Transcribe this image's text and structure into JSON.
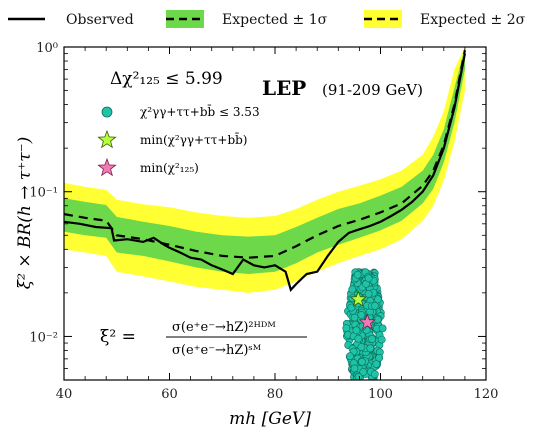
{
  "legend": [
    {
      "label": "Observed",
      "style": "solid",
      "color": "#000000"
    },
    {
      "label": "Expected  ± 1σ",
      "style": "dashed",
      "color": "#000000",
      "band": "#6cd84a"
    },
    {
      "label": "Expected  ± 2σ",
      "style": "dashed",
      "color": "#000000",
      "band": "#ffff33"
    }
  ],
  "annotations": {
    "delta_chi": "Δχ²₁₂₅ ≤ 5.99",
    "lep_bold": "LEP",
    "lep_range": "(91-209 GeV)",
    "scatter_label": "χ²γγ+ττ+bb̄ ≤ 3.53",
    "star_green_label": "min(χ²γγ+ττ+bb̄)",
    "star_pink_label": "min(χ²₁₂₅)",
    "formula_lhs": "ξ² =",
    "formula_num": "σ(e⁺e⁻→hZ)²ᴴᴰᴹ",
    "formula_den": "σ(e⁺e⁻→hZ)ˢᴹ"
  },
  "colors": {
    "band_1sigma": "#6cd84a",
    "band_2sigma": "#ffff33",
    "scatter": "#1fc4a8",
    "star_green": "#b6ff3c",
    "star_pink": "#f07ab4"
  },
  "chart_data": {
    "type": "line",
    "xlabel": "mh [GeV]",
    "ylabel": "ξ² × BR(h → τ⁺τ⁻)",
    "xlim": [
      40,
      120
    ],
    "ylim": [
      0.005,
      1.0
    ],
    "yscale": "log",
    "x_ticks": [
      "40",
      "60",
      "80",
      "100",
      "120"
    ],
    "y_ticks": [
      "10⁻²",
      "10⁻¹",
      "10⁰"
    ],
    "series": [
      {
        "name": "Observed",
        "x": [
          40,
          43,
          46,
          49,
          49.5,
          52,
          55,
          57,
          59,
          60,
          62,
          64,
          66,
          68,
          70,
          72,
          74,
          76,
          78,
          80,
          82,
          83,
          84,
          86,
          88,
          90,
          92,
          94,
          96,
          98,
          100,
          102,
          104,
          106,
          108,
          110,
          112,
          114,
          116
        ],
        "y": [
          0.062,
          0.06,
          0.057,
          0.056,
          0.046,
          0.047,
          0.045,
          0.048,
          0.043,
          0.041,
          0.038,
          0.035,
          0.034,
          0.031,
          0.029,
          0.027,
          0.034,
          0.031,
          0.03,
          0.031,
          0.028,
          0.021,
          0.023,
          0.027,
          0.028,
          0.036,
          0.045,
          0.052,
          0.055,
          0.058,
          0.062,
          0.068,
          0.075,
          0.085,
          0.1,
          0.13,
          0.2,
          0.38,
          0.9
        ]
      },
      {
        "name": "Expected",
        "x": [
          40,
          44,
          48,
          50,
          55,
          60,
          65,
          70,
          75,
          80,
          84,
          88,
          92,
          96,
          100,
          104,
          108,
          110,
          112,
          114,
          116
        ],
        "y": [
          0.07,
          0.066,
          0.063,
          0.05,
          0.047,
          0.043,
          0.039,
          0.036,
          0.035,
          0.036,
          0.042,
          0.05,
          0.058,
          0.064,
          0.072,
          0.083,
          0.11,
          0.14,
          0.21,
          0.4,
          0.95
        ]
      }
    ],
    "bands": [
      {
        "name": "Expected ± 2σ",
        "x": [
          40,
          44,
          48,
          50,
          55,
          60,
          65,
          70,
          75,
          80,
          84,
          88,
          92,
          96,
          100,
          104,
          108,
          110,
          112,
          114,
          116
        ],
        "lower": [
          0.04,
          0.038,
          0.036,
          0.028,
          0.026,
          0.024,
          0.022,
          0.021,
          0.02,
          0.021,
          0.024,
          0.028,
          0.032,
          0.036,
          0.04,
          0.047,
          0.063,
          0.08,
          0.12,
          0.22,
          0.5
        ],
        "upper": [
          0.115,
          0.108,
          0.103,
          0.088,
          0.082,
          0.078,
          0.072,
          0.068,
          0.066,
          0.068,
          0.076,
          0.088,
          0.1,
          0.11,
          0.122,
          0.14,
          0.18,
          0.24,
          0.36,
          0.7,
          1.0
        ]
      },
      {
        "name": "Expected ± 1σ",
        "x": [
          40,
          44,
          48,
          50,
          55,
          60,
          65,
          70,
          75,
          80,
          84,
          88,
          92,
          96,
          100,
          104,
          108,
          110,
          112,
          114,
          116
        ],
        "lower": [
          0.053,
          0.05,
          0.048,
          0.038,
          0.036,
          0.033,
          0.03,
          0.028,
          0.027,
          0.028,
          0.032,
          0.038,
          0.043,
          0.048,
          0.054,
          0.063,
          0.083,
          0.105,
          0.16,
          0.3,
          0.7
        ],
        "upper": [
          0.09,
          0.085,
          0.081,
          0.067,
          0.062,
          0.058,
          0.053,
          0.05,
          0.049,
          0.05,
          0.057,
          0.066,
          0.076,
          0.083,
          0.094,
          0.108,
          0.14,
          0.18,
          0.27,
          0.52,
          1.0
        ]
      }
    ],
    "scatter_region": {
      "x": [
        93.5,
        100.5
      ],
      "y": [
        0.0052,
        0.028
      ]
    },
    "stars": [
      {
        "name": "min-chi2-gg-tautau-bb",
        "x": 95.8,
        "y": 0.018
      },
      {
        "name": "min-chi2-125",
        "x": 97.5,
        "y": 0.0125
      }
    ],
    "grid": false,
    "legend_position": "top"
  }
}
